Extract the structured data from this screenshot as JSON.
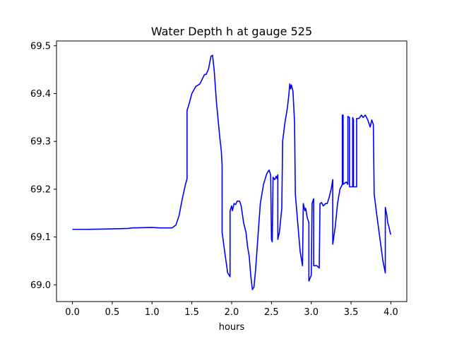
{
  "chart_data": {
    "type": "line",
    "title": "Water Depth h at gauge 525",
    "xlabel": "hours",
    "ylabel": "",
    "xlim": [
      -0.2,
      4.2
    ],
    "ylim": [
      68.965,
      69.51
    ],
    "grid": false,
    "x_ticks": [
      0.0,
      0.5,
      1.0,
      1.5,
      2.0,
      2.5,
      3.0,
      3.5,
      4.0
    ],
    "x_tick_labels": [
      "0.0",
      "0.5",
      "1.0",
      "1.5",
      "2.0",
      "2.5",
      "3.0",
      "3.5",
      "4.0"
    ],
    "y_ticks": [
      69.0,
      69.1,
      69.2,
      69.3,
      69.4,
      69.5
    ],
    "y_tick_labels": [
      "69.0",
      "69.1",
      "69.2",
      "69.3",
      "69.4",
      "69.5"
    ],
    "series": [
      {
        "color": "#0000ff",
        "points": [
          [
            0.0,
            69.116
          ],
          [
            0.2,
            69.116
          ],
          [
            0.5,
            69.117
          ],
          [
            0.7,
            69.118
          ],
          [
            0.75,
            69.119
          ],
          [
            1.0,
            69.12
          ],
          [
            1.1,
            69.119
          ],
          [
            1.25,
            69.119
          ],
          [
            1.3,
            69.125
          ],
          [
            1.34,
            69.145
          ],
          [
            1.38,
            69.18
          ],
          [
            1.42,
            69.21
          ],
          [
            1.44,
            69.222
          ],
          [
            1.44,
            69.365
          ],
          [
            1.46,
            69.375
          ],
          [
            1.5,
            69.4
          ],
          [
            1.55,
            69.415
          ],
          [
            1.6,
            69.42
          ],
          [
            1.66,
            69.44
          ],
          [
            1.68,
            69.44
          ],
          [
            1.71,
            69.452
          ],
          [
            1.74,
            69.478
          ],
          [
            1.76,
            69.48
          ],
          [
            1.78,
            69.45
          ],
          [
            1.81,
            69.38
          ],
          [
            1.85,
            69.31
          ],
          [
            1.87,
            69.28
          ],
          [
            1.88,
            69.25
          ],
          [
            1.88,
            69.11
          ],
          [
            1.92,
            69.06
          ],
          [
            1.95,
            69.025
          ],
          [
            1.98,
            69.017
          ],
          [
            1.98,
            69.155
          ],
          [
            2.0,
            69.165
          ],
          [
            2.01,
            69.155
          ],
          [
            2.03,
            69.17
          ],
          [
            2.05,
            69.168
          ],
          [
            2.07,
            69.175
          ],
          [
            2.1,
            69.175
          ],
          [
            2.12,
            69.165
          ],
          [
            2.15,
            69.13
          ],
          [
            2.18,
            69.11
          ],
          [
            2.2,
            69.08
          ],
          [
            2.22,
            69.06
          ],
          [
            2.24,
            69.02
          ],
          [
            2.26,
            68.99
          ],
          [
            2.28,
            68.995
          ],
          [
            2.3,
            69.03
          ],
          [
            2.33,
            69.1
          ],
          [
            2.36,
            69.17
          ],
          [
            2.4,
            69.21
          ],
          [
            2.44,
            69.232
          ],
          [
            2.47,
            69.24
          ],
          [
            2.49,
            69.23
          ],
          [
            2.5,
            69.095
          ],
          [
            2.51,
            69.09
          ],
          [
            2.52,
            69.225
          ],
          [
            2.54,
            69.22
          ],
          [
            2.56,
            69.227
          ],
          [
            2.57,
            69.222
          ],
          [
            2.58,
            69.23
          ],
          [
            2.58,
            69.095
          ],
          [
            2.6,
            69.11
          ],
          [
            2.63,
            69.16
          ],
          [
            2.64,
            69.3
          ],
          [
            2.67,
            69.34
          ],
          [
            2.7,
            69.37
          ],
          [
            2.72,
            69.4
          ],
          [
            2.73,
            69.42
          ],
          [
            2.74,
            69.41
          ],
          [
            2.75,
            69.418
          ],
          [
            2.77,
            69.405
          ],
          [
            2.79,
            69.34
          ],
          [
            2.8,
            69.19
          ],
          [
            2.83,
            69.13
          ],
          [
            2.86,
            69.07
          ],
          [
            2.89,
            69.04
          ],
          [
            2.9,
            69.17
          ],
          [
            2.92,
            69.155
          ],
          [
            2.93,
            69.16
          ],
          [
            2.95,
            69.14
          ],
          [
            2.97,
            69.13
          ],
          [
            2.97,
            69.008
          ],
          [
            3.0,
            69.02
          ],
          [
            3.01,
            69.17
          ],
          [
            3.03,
            69.18
          ],
          [
            3.03,
            69.04
          ],
          [
            3.07,
            69.04
          ],
          [
            3.1,
            69.035
          ],
          [
            3.11,
            69.17
          ],
          [
            3.13,
            69.172
          ],
          [
            3.15,
            69.165
          ],
          [
            3.18,
            69.17
          ],
          [
            3.2,
            69.17
          ],
          [
            3.22,
            69.18
          ],
          [
            3.25,
            69.2
          ],
          [
            3.27,
            69.22
          ],
          [
            3.27,
            69.085
          ],
          [
            3.3,
            69.12
          ],
          [
            3.33,
            69.17
          ],
          [
            3.36,
            69.2
          ],
          [
            3.39,
            69.21
          ],
          [
            3.39,
            69.355
          ],
          [
            3.4,
            69.355
          ],
          [
            3.4,
            69.21
          ],
          [
            3.44,
            69.215
          ],
          [
            3.46,
            69.21
          ],
          [
            3.46,
            69.352
          ],
          [
            3.48,
            69.35
          ],
          [
            3.48,
            69.205
          ],
          [
            3.52,
            69.205
          ],
          [
            3.52,
            69.35
          ],
          [
            3.53,
            69.345
          ],
          [
            3.53,
            69.205
          ],
          [
            3.57,
            69.205
          ],
          [
            3.57,
            69.348
          ],
          [
            3.6,
            69.348
          ],
          [
            3.63,
            69.355
          ],
          [
            3.65,
            69.35
          ],
          [
            3.68,
            69.355
          ],
          [
            3.71,
            69.345
          ],
          [
            3.74,
            69.33
          ],
          [
            3.76,
            69.345
          ],
          [
            3.78,
            69.335
          ],
          [
            3.79,
            69.19
          ],
          [
            3.82,
            69.15
          ],
          [
            3.86,
            69.1
          ],
          [
            3.9,
            69.05
          ],
          [
            3.93,
            69.025
          ],
          [
            3.93,
            69.162
          ],
          [
            3.95,
            69.145
          ],
          [
            3.96,
            69.13
          ],
          [
            3.97,
            69.125
          ],
          [
            3.98,
            69.118
          ],
          [
            3.99,
            69.11
          ],
          [
            4.0,
            69.105
          ]
        ]
      }
    ]
  }
}
